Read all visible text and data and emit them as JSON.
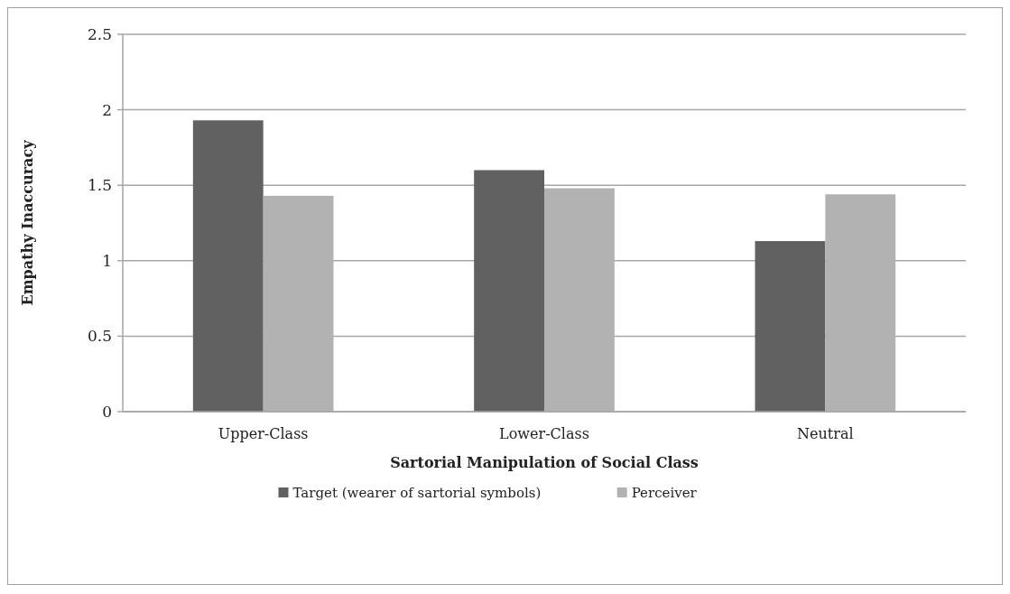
{
  "chart_data": {
    "type": "bar",
    "xlabel": "Sartorial Manipulation of Social Class",
    "ylabel": "Empathy Inaccuracy",
    "categories": [
      "Upper-Class",
      "Lower-Class",
      "Neutral"
    ],
    "series": [
      {
        "name": "Target (wearer of sartorial symbols)",
        "color": "#616161",
        "values": [
          1.93,
          1.6,
          1.13
        ]
      },
      {
        "name": "Perceiver",
        "color": "#b2b2b2",
        "values": [
          1.43,
          1.48,
          1.44
        ]
      }
    ],
    "ylim": [
      0,
      2.5
    ],
    "yticks": [
      0,
      0.5,
      1,
      1.5,
      2,
      2.5
    ],
    "grid": "y",
    "legend": "bottom"
  }
}
